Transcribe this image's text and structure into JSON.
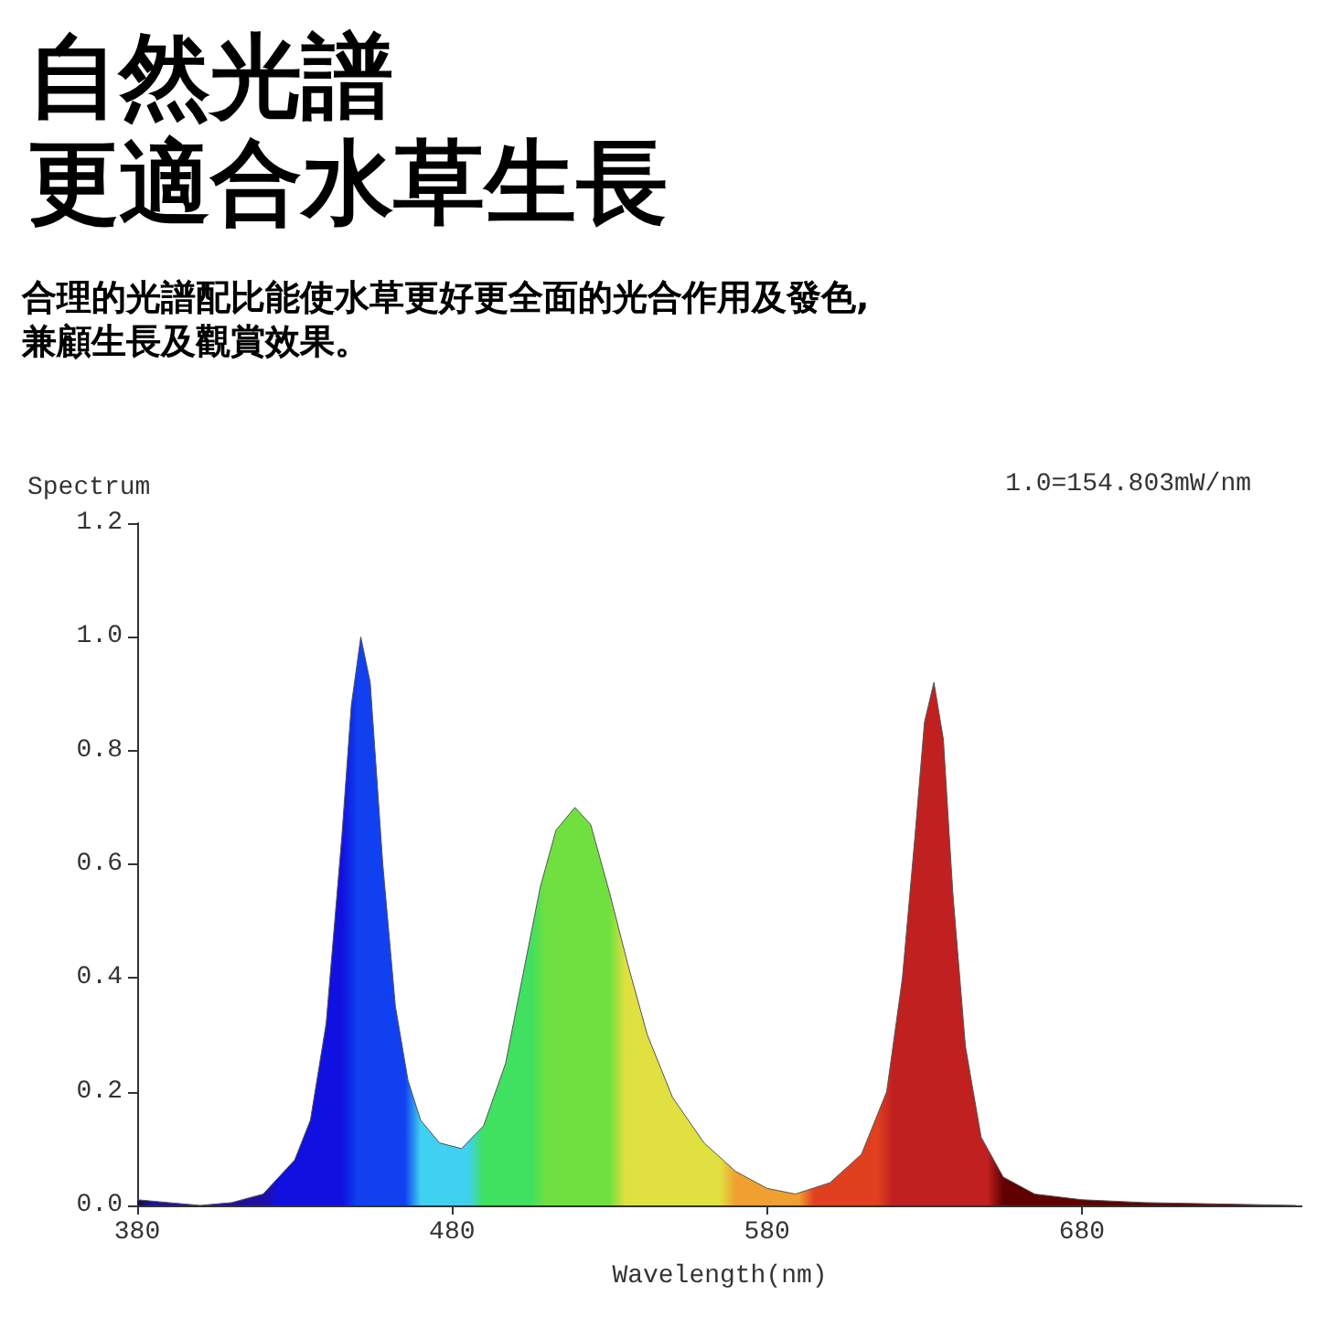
{
  "chart_data": {
    "type": "area",
    "title": "自然光譜",
    "subtitle": "更適合水草生長",
    "xlabel": "Wavelength(nm)",
    "ylabel": "Spectrum",
    "annotations": [
      "合理的光譜配比能使水草更好更全面的光合作用及發色,兼顧生長及觀賞效果。",
      "1.0=154.803mW/nm"
    ],
    "x": [
      380,
      390,
      400,
      410,
      420,
      430,
      435,
      440,
      445,
      448,
      451,
      454,
      458,
      462,
      466,
      470,
      476,
      483,
      490,
      497,
      503,
      508,
      513,
      519,
      524,
      530,
      536,
      542,
      550,
      560,
      570,
      580,
      589,
      600,
      610,
      618,
      623,
      627,
      630,
      633,
      636,
      639,
      643,
      648,
      655,
      665,
      680,
      700,
      748
    ],
    "values": [
      0.01,
      0.005,
      0,
      0.005,
      0.02,
      0.08,
      0.15,
      0.32,
      0.65,
      0.88,
      1.0,
      0.92,
      0.6,
      0.35,
      0.22,
      0.15,
      0.11,
      0.1,
      0.14,
      0.25,
      0.42,
      0.56,
      0.66,
      0.7,
      0.67,
      0.55,
      0.42,
      0.3,
      0.19,
      0.11,
      0.06,
      0.03,
      0.02,
      0.04,
      0.09,
      0.2,
      0.4,
      0.65,
      0.85,
      0.92,
      0.82,
      0.55,
      0.28,
      0.12,
      0.05,
      0.02,
      0.01,
      0.005,
      0
    ],
    "xlim": [
      380,
      750
    ],
    "xticks": [
      380,
      480,
      580,
      680
    ],
    "ylim": [
      0,
      1.2
    ],
    "yticks": [
      {
        "value": 0,
        "label": "0.0"
      },
      0.2,
      0.4,
      0.6,
      0.8,
      {
        "value": 1,
        "label": "1.0"
      },
      1.2
    ],
    "grid": false,
    "marker": "none"
  }
}
